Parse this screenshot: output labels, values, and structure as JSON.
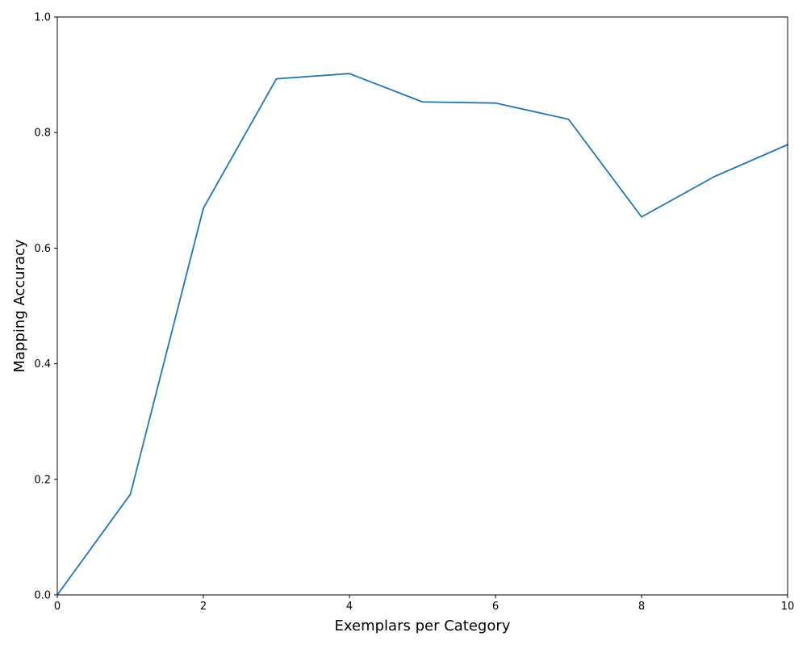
{
  "chart_data": {
    "type": "line",
    "title": "",
    "xlabel": "Exemplars per Category",
    "ylabel": "Mapping Accuracy",
    "xlim": [
      0,
      10
    ],
    "ylim": [
      0.0,
      1.0
    ],
    "xticks": [
      "0",
      "2",
      "4",
      "6",
      "8",
      "10"
    ],
    "yticks": [
      "0.0",
      "0.2",
      "0.4",
      "0.6",
      "0.8",
      "1.0"
    ],
    "grid": false,
    "legend": "none",
    "series": [
      {
        "color": "#1f77b4",
        "x": [
          0,
          1,
          2,
          3,
          4,
          5,
          6,
          7,
          8,
          9,
          10
        ],
        "y": [
          0.0,
          0.174,
          0.669,
          0.893,
          0.902,
          0.853,
          0.851,
          0.823,
          0.654,
          0.724,
          0.779
        ]
      }
    ]
  }
}
